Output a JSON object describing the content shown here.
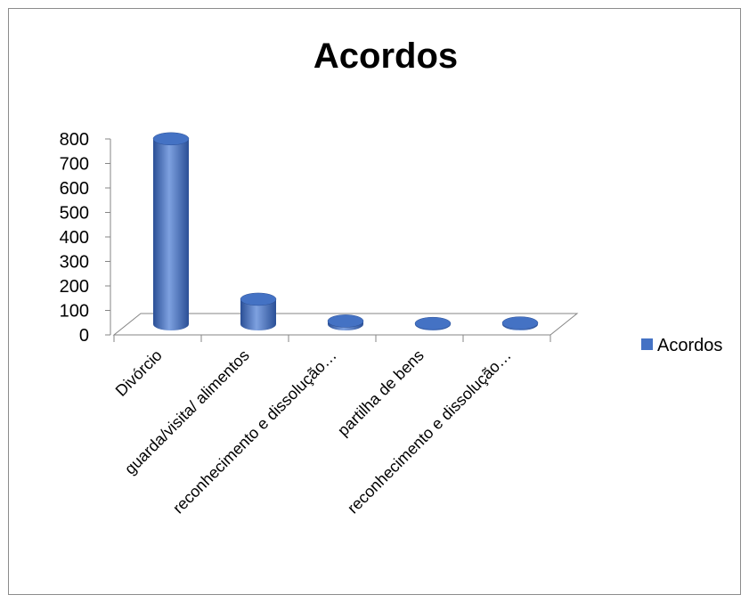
{
  "chart_data": {
    "type": "bar",
    "title": "Acordos",
    "categories": [
      "Divórcio",
      "guarda/visita/ alimentos",
      "reconhecimento e dissolução…",
      "partilha de bens",
      "reconhecimento e dissolução…"
    ],
    "series": [
      {
        "name": "Acordos",
        "values": [
          757,
          102,
          13,
          3,
          5
        ]
      }
    ],
    "ylim": [
      0,
      800
    ],
    "yticks": [
      "0",
      "100",
      "200",
      "300",
      "400",
      "500",
      "600",
      "700",
      "800"
    ],
    "xlabel": "",
    "ylabel": "",
    "legend_position": "right",
    "grid": false,
    "bar_style": "3d-cylinder",
    "colors": {
      "bar": "#4472c4",
      "bar_dark": "#2a4f96",
      "bar_light": "#7ea1e0",
      "axis": "#868686"
    }
  }
}
